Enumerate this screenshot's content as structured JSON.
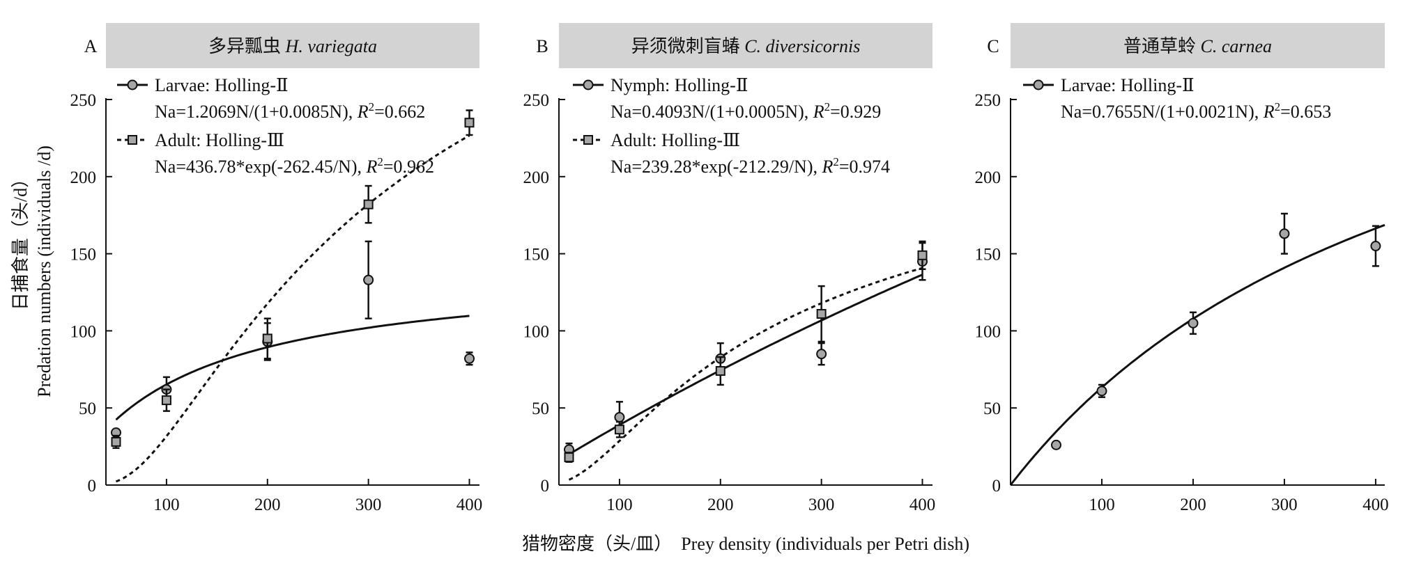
{
  "figure": {
    "ylabel_cn": "日捕食量（头/d）",
    "ylabel_en": "Predation numbers (individuals /d)",
    "xlabel": "猎物密度（头/皿）  Prey density (individuals per Petri dish)"
  },
  "chart_data": [
    {
      "type": "line",
      "panel": "A",
      "title": "多异瓢虫 H. variegata",
      "title_cn": "多异瓢虫 ",
      "title_species": "H. variegata",
      "xlim": [
        40,
        410
      ],
      "ylim": [
        0,
        250
      ],
      "xticks": [
        100,
        200,
        300,
        400
      ],
      "yticks": [
        0,
        50,
        100,
        150,
        200,
        250
      ],
      "show_yticklabels": true,
      "series": [
        {
          "name": "Larvae: Holling-Ⅱ",
          "equation": "Na=1.2069N/(1+0.0085N), R²=0.662",
          "eq_main": "Na=1.2069N/(1+0.0085N), ",
          "r2": "=0.662",
          "model": "holling2",
          "a": 1.2069,
          "b": 0.0085,
          "curve_x_range": [
            50,
            400
          ],
          "marker": "circle",
          "line_style": "solid",
          "points": [
            {
              "x": 50,
              "y": 34,
              "err": 0
            },
            {
              "x": 100,
              "y": 62,
              "err": 8
            },
            {
              "x": 200,
              "y": 93,
              "err": 12
            },
            {
              "x": 300,
              "y": 133,
              "err": 25
            },
            {
              "x": 400,
              "y": 82,
              "err": 4
            }
          ]
        },
        {
          "name": "Adult: Holling-Ⅲ",
          "equation": "Na=436.78*exp(-262.45/N), R²=0.962",
          "eq_main": "Na=436.78*exp(-262.45/N), ",
          "r2": "=0.962",
          "model": "holling3exp",
          "a": 436.78,
          "b": 262.45,
          "curve_x_range": [
            50,
            400
          ],
          "marker": "square",
          "line_style": "dashed",
          "points": [
            {
              "x": 50,
              "y": 28,
              "err": 4
            },
            {
              "x": 100,
              "y": 55,
              "err": 7
            },
            {
              "x": 200,
              "y": 95,
              "err": 13
            },
            {
              "x": 300,
              "y": 182,
              "err": 12
            },
            {
              "x": 400,
              "y": 235,
              "err": 8
            }
          ]
        }
      ]
    },
    {
      "type": "line",
      "panel": "B",
      "title": "异须微刺盲蝽 C. diversicornis",
      "title_cn": "异须微刺盲蝽 ",
      "title_species": "C. diversicornis",
      "xlim": [
        40,
        410
      ],
      "ylim": [
        0,
        250
      ],
      "xticks": [
        100,
        200,
        300,
        400
      ],
      "yticks": [
        0,
        50,
        100,
        150,
        200,
        250
      ],
      "show_yticklabels": true,
      "series": [
        {
          "name": "Nymph: Holling-Ⅱ",
          "equation": "Na=0.4093N/(1+0.0005N), R²=0.929",
          "eq_main": "Na=0.4093N/(1+0.0005N), ",
          "r2": "=0.929",
          "model": "holling2",
          "a": 0.4093,
          "b": 0.0005,
          "curve_x_range": [
            50,
            400
          ],
          "marker": "circle",
          "line_style": "solid",
          "points": [
            {
              "x": 50,
              "y": 23,
              "err": 4
            },
            {
              "x": 100,
              "y": 44,
              "err": 10
            },
            {
              "x": 200,
              "y": 82,
              "err": 10
            },
            {
              "x": 300,
              "y": 85,
              "err": 7
            },
            {
              "x": 400,
              "y": 145,
              "err": 12
            }
          ]
        },
        {
          "name": "Adult: Holling-Ⅲ",
          "equation": "Na=239.28*exp(-212.29/N), R²=0.974",
          "eq_main": "Na=239.28*exp(-212.29/N), ",
          "r2": "=0.974",
          "model": "holling3exp",
          "a": 239.28,
          "b": 212.29,
          "curve_x_range": [
            50,
            400
          ],
          "marker": "square",
          "line_style": "dashed",
          "points": [
            {
              "x": 50,
              "y": 18,
              "err": 3
            },
            {
              "x": 100,
              "y": 36,
              "err": 5
            },
            {
              "x": 200,
              "y": 74,
              "err": 9
            },
            {
              "x": 300,
              "y": 111,
              "err": 18
            },
            {
              "x": 400,
              "y": 149,
              "err": 9
            }
          ]
        }
      ]
    },
    {
      "type": "line",
      "panel": "C",
      "title": "普通草蛉 C. carnea",
      "title_cn": "普通草蛉 ",
      "title_species": "C. carnea",
      "xlim": [
        0,
        410
      ],
      "ylim": [
        0,
        250
      ],
      "xticks": [
        100,
        200,
        300,
        400
      ],
      "yticks": [
        0,
        50,
        100,
        150,
        200,
        250
      ],
      "show_yticklabels": true,
      "series": [
        {
          "name": "Larvae: Holling-Ⅱ",
          "equation": "Na=0.7655N/(1+0.0021N), R²=0.653",
          "eq_main": "Na=0.7655N/(1+0.0021N), ",
          "r2": "=0.653",
          "model": "holling2",
          "a": 0.7655,
          "b": 0.0021,
          "curve_x_range": [
            0,
            410
          ],
          "marker": "circle",
          "line_style": "solid",
          "points": [
            {
              "x": 50,
              "y": 26,
              "err": 0
            },
            {
              "x": 100,
              "y": 61,
              "err": 4
            },
            {
              "x": 200,
              "y": 105,
              "err": 7
            },
            {
              "x": 300,
              "y": 163,
              "err": 13
            },
            {
              "x": 400,
              "y": 155,
              "err": 13
            }
          ]
        }
      ]
    }
  ]
}
